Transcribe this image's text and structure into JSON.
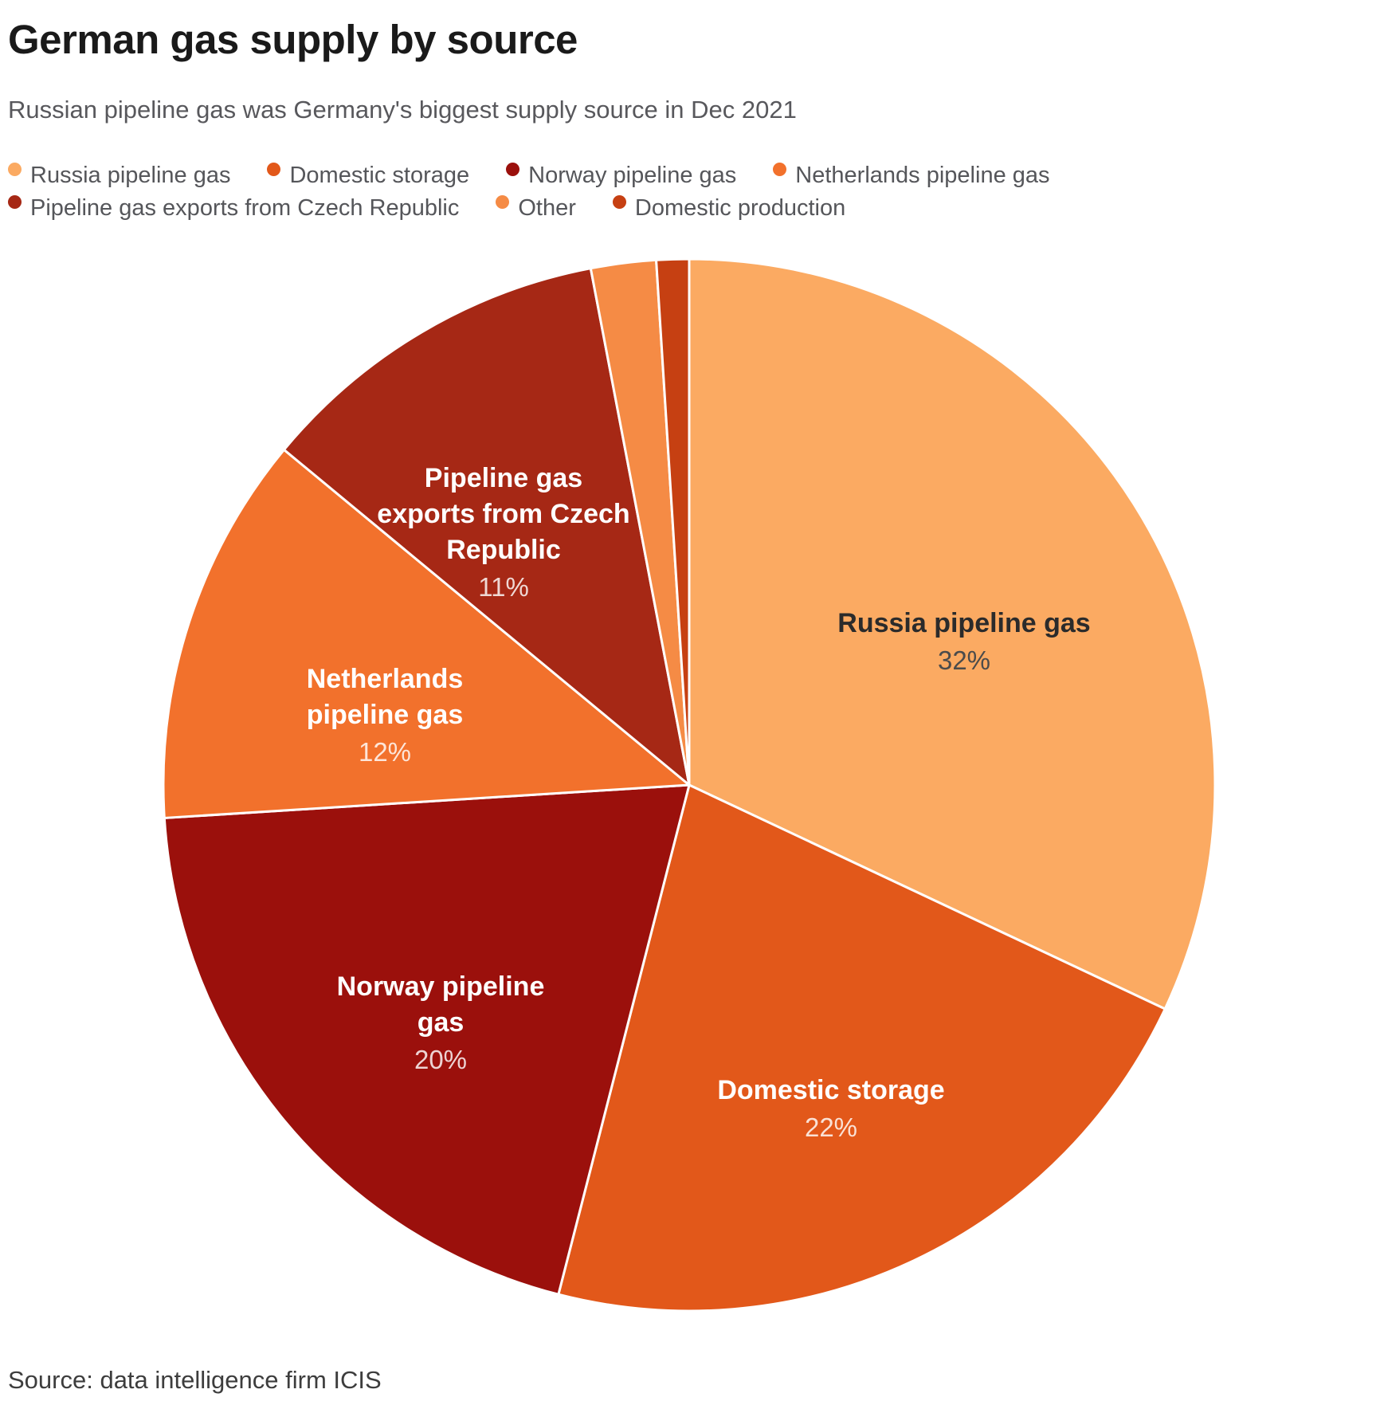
{
  "header": {
    "title": "German gas supply by source",
    "subtitle": "Russian pipeline gas was Germany's biggest supply source in Dec 2021"
  },
  "footer": {
    "source": "Source: data intelligence firm ICIS"
  },
  "chart_data": {
    "type": "pie",
    "title": "German gas supply by source",
    "subtitle": "Russian pipeline gas was Germany's biggest supply source in Dec 2021",
    "unit": "%",
    "start_angle_deg": 0,
    "direction": "clockwise",
    "legend_position": "top",
    "slices": [
      {
        "label": "Russia pipeline gas",
        "value": 32,
        "color": "#FBAA62",
        "chart_label": "Russia pipeline gas",
        "pct_label": "32%"
      },
      {
        "label": "Domestic storage",
        "value": 22,
        "color": "#E2581A",
        "chart_label": "Domestic storage",
        "pct_label": "22%"
      },
      {
        "label": "Norway pipeline gas",
        "value": 20,
        "color": "#9B100C",
        "chart_label": "Norway pipeline\ngas",
        "pct_label": "20%"
      },
      {
        "label": "Netherlands pipeline gas",
        "value": 12,
        "color": "#F2712C",
        "chart_label": "Netherlands\npipeline gas",
        "pct_label": "12%"
      },
      {
        "label": "Pipeline gas exports from Czech Republic",
        "value": 11,
        "color": "#A62815",
        "chart_label": "Pipeline gas\nexports from Czech\nRepublic",
        "pct_label": "11%"
      },
      {
        "label": "Other",
        "value": 2,
        "color": "#F58B45"
      },
      {
        "label": "Domestic production",
        "value": 1,
        "color": "#C64012"
      }
    ]
  }
}
